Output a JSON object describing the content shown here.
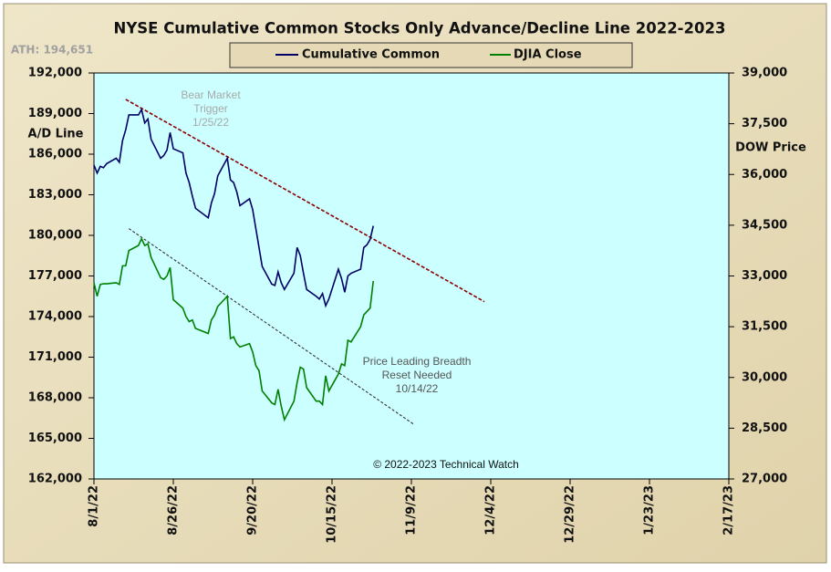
{
  "chart_data": {
    "type": "line",
    "title": "NYSE Cumulative  Common  Stocks  Only  Advance/Decline  Line  2022-2023",
    "ath_label": "ATH: 194,651",
    "ylabel": "A/D Line",
    "y2label": "DOW  Price",
    "credit": "© 2022-2023  Technical Watch",
    "x": [
      "2022-08-01",
      "2022-08-02",
      "2022-08-03",
      "2022-08-04",
      "2022-08-05",
      "2022-08-08",
      "2022-08-09",
      "2022-08-10",
      "2022-08-11",
      "2022-08-12",
      "2022-08-15",
      "2022-08-16",
      "2022-08-17",
      "2022-08-18",
      "2022-08-19",
      "2022-08-22",
      "2022-08-23",
      "2022-08-24",
      "2022-08-25",
      "2022-08-26",
      "2022-08-29",
      "2022-08-30",
      "2022-08-31",
      "2022-09-01",
      "2022-09-02",
      "2022-09-06",
      "2022-09-07",
      "2022-09-08",
      "2022-09-09",
      "2022-09-12",
      "2022-09-13",
      "2022-09-14",
      "2022-09-15",
      "2022-09-16",
      "2022-09-19",
      "2022-09-20",
      "2022-09-21",
      "2022-09-22",
      "2022-09-23",
      "2022-09-26",
      "2022-09-27",
      "2022-09-28",
      "2022-09-29",
      "2022-09-30",
      "2022-10-03",
      "2022-10-04",
      "2022-10-05",
      "2022-10-06",
      "2022-10-07",
      "2022-10-10",
      "2022-10-11",
      "2022-10-12",
      "2022-10-13",
      "2022-10-14",
      "2022-10-17",
      "2022-10-18",
      "2022-10-19",
      "2022-10-20",
      "2022-10-21",
      "2022-10-24",
      "2022-10-25",
      "2022-10-26",
      "2022-10-27",
      "2022-10-28"
    ],
    "series": [
      {
        "name": "Cumulative Common",
        "color": "#000066",
        "values": [
          185200,
          184600,
          185100,
          185000,
          185300,
          185700,
          185400,
          187000,
          187800,
          188900,
          188900,
          189300,
          188300,
          188600,
          187100,
          185700,
          185900,
          186300,
          187600,
          186400,
          186100,
          184600,
          183900,
          182900,
          182000,
          181300,
          182400,
          183100,
          184400,
          185700,
          184100,
          183900,
          183200,
          182200,
          182700,
          181900,
          180500,
          179100,
          177700,
          176400,
          176300,
          177300,
          176500,
          176000,
          177200,
          179100,
          178500,
          177200,
          176000,
          175500,
          175300,
          175700,
          174800,
          175300,
          177500,
          176800,
          175800,
          177000,
          177200,
          177500,
          179100,
          179300,
          179700,
          180700
        ]
      },
      {
        "name": "DJIA Close",
        "color": "#008000",
        "axis": "y2",
        "values": [
          32800,
          32400,
          32750,
          32770,
          32770,
          32800,
          32750,
          33300,
          33300,
          33750,
          33900,
          34100,
          33900,
          33950,
          33550,
          32950,
          32900,
          33000,
          33250,
          32300,
          32050,
          31800,
          31650,
          31700,
          31450,
          31300,
          31700,
          31850,
          32100,
          32400,
          31150,
          31200,
          31000,
          30900,
          31000,
          30750,
          30350,
          30200,
          29600,
          29250,
          29200,
          29650,
          29150,
          28750,
          29300,
          29850,
          30300,
          30250,
          29700,
          29300,
          29300,
          29200,
          30050,
          29600,
          30100,
          30400,
          30350,
          31100,
          31050,
          31500,
          31850,
          31950,
          32050,
          32850
        ]
      }
    ],
    "xlim": [
      "2022-08-01",
      "2023-02-17"
    ],
    "xticks": [
      {
        "value": "2022-08-01",
        "label": "8/1/22"
      },
      {
        "value": "2022-08-26",
        "label": "8/26/22"
      },
      {
        "value": "2022-09-20",
        "label": "9/20/22"
      },
      {
        "value": "2022-10-15",
        "label": "10/15/22"
      },
      {
        "value": "2022-11-09",
        "label": "11/9/22"
      },
      {
        "value": "2022-12-04",
        "label": "12/4/22"
      },
      {
        "value": "2022-12-29",
        "label": "12/29/22"
      },
      {
        "value": "2023-01-23",
        "label": "1/23/23"
      },
      {
        "value": "2023-02-17",
        "label": "2/17/23"
      }
    ],
    "ylim": [
      162000,
      192000
    ],
    "yticks": [
      {
        "value": 162000,
        "label": "162,000"
      },
      {
        "value": 165000,
        "label": "165,000"
      },
      {
        "value": 168000,
        "label": "168,000"
      },
      {
        "value": 171000,
        "label": "171,000"
      },
      {
        "value": 174000,
        "label": "174,000"
      },
      {
        "value": 177000,
        "label": "177,000"
      },
      {
        "value": 180000,
        "label": "180,000"
      },
      {
        "value": 183000,
        "label": "183,000"
      },
      {
        "value": 186000,
        "label": "186,000"
      },
      {
        "value": 189000,
        "label": "189,000"
      },
      {
        "value": 192000,
        "label": "192,000"
      }
    ],
    "y2lim": [
      27000,
      39000
    ],
    "y2ticks": [
      {
        "value": 27000,
        "label": "27,000"
      },
      {
        "value": 28500,
        "label": "28,500"
      },
      {
        "value": 30000,
        "label": "30,000"
      },
      {
        "value": 31500,
        "label": "31,500"
      },
      {
        "value": 33000,
        "label": "33,000"
      },
      {
        "value": 34500,
        "label": "34,500"
      },
      {
        "value": 36000,
        "label": "36,000"
      },
      {
        "value": 37500,
        "label": "37,500"
      },
      {
        "value": 39000,
        "label": "39,000"
      }
    ],
    "trend_lines": [
      {
        "color": "#8b0000",
        "x": [
          "2022-08-11",
          "2022-12-02"
        ],
        "values": [
          190050,
          175100
        ]
      },
      {
        "color": "#333333",
        "axis": "y2",
        "x": [
          "2022-08-12",
          "2022-11-10"
        ],
        "values": [
          34400,
          28600
        ]
      }
    ],
    "annotations": [
      {
        "color": "#a8a8a8",
        "lines": [
          "Bear Market",
          "Trigger",
          "1/25/22"
        ]
      },
      {
        "color": "#555555",
        "lines": [
          "Price Leading Breadth",
          "Reset Needed",
          "10/14/22"
        ]
      }
    ]
  }
}
